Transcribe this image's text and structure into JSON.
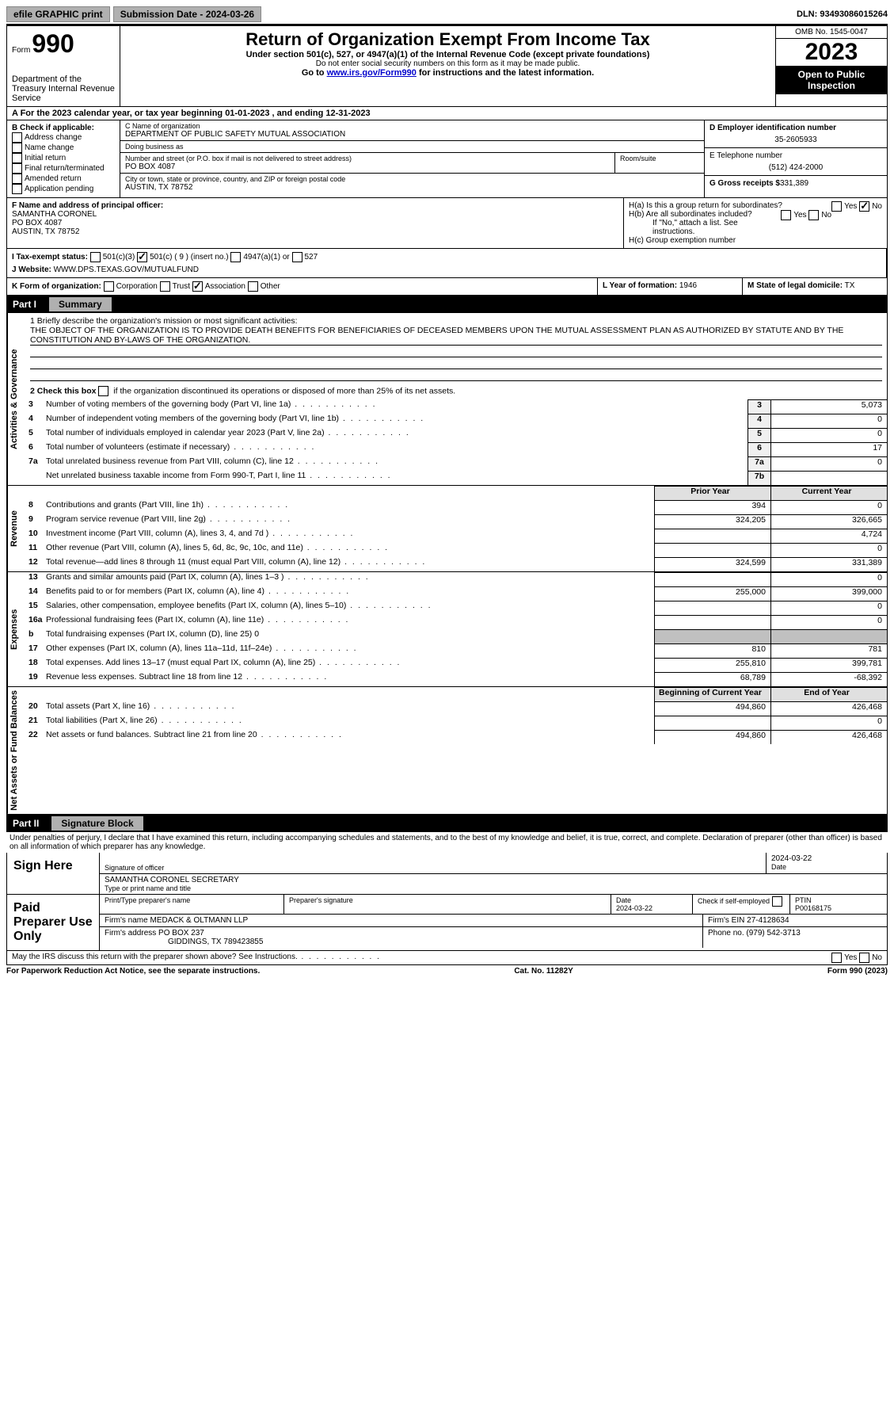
{
  "topbar": {
    "efile": "efile GRAPHIC print",
    "submission_label": "Submission Date - 2024-03-26",
    "dln_label": "DLN: 93493086015264"
  },
  "header": {
    "form_label": "Form",
    "form_num": "990",
    "dept": "Department of the Treasury Internal Revenue Service",
    "title": "Return of Organization Exempt From Income Tax",
    "sub": "Under section 501(c), 527, or 4947(a)(1) of the Internal Revenue Code (except private foundations)",
    "ssn_note": "Do not enter social security numbers on this form as it may be made public.",
    "goto_pre": "Go to ",
    "goto_link": "www.irs.gov/Form990",
    "goto_post": " for instructions and the latest information.",
    "omb": "OMB No. 1545-0047",
    "year": "2023",
    "open_public": "Open to Public Inspection"
  },
  "section_a": "A  For the 2023 calendar year, or tax year beginning 01-01-2023   , and ending 12-31-2023",
  "section_b": {
    "label": "B Check if applicable:",
    "items": [
      "Address change",
      "Name change",
      "Initial return",
      "Final return/terminated",
      "Amended return",
      "Application pending"
    ]
  },
  "section_c": {
    "name_label": "C Name of organization",
    "name": "DEPARTMENT OF PUBLIC SAFETY MUTUAL ASSOCIATION",
    "dba_label": "Doing business as",
    "dba": "",
    "street_label": "Number and street (or P.O. box if mail is not delivered to street address)",
    "street": "PO BOX 4087",
    "room_label": "Room/suite",
    "room": "",
    "city_label": "City or town, state or province, country, and ZIP or foreign postal code",
    "city": "AUSTIN, TX  78752"
  },
  "section_d": {
    "ein_label": "D Employer identification number",
    "ein": "35-2605933",
    "phone_label": "E Telephone number",
    "phone": "(512) 424-2000",
    "gross_label": "G Gross receipts $",
    "gross": "331,389"
  },
  "section_f": {
    "label": "F  Name and address of principal officer:",
    "name": "SAMANTHA CORONEL",
    "addr1": "PO BOX 4087",
    "addr2": "AUSTIN, TX  78752"
  },
  "section_h": {
    "a": "H(a)  Is this a group return for subordinates?",
    "a_no": "No",
    "b": "H(b)  Are all subordinates included?",
    "b_note": "If \"No,\" attach a list. See instructions.",
    "c": "H(c)  Group exemption number "
  },
  "section_i": {
    "label": "I   Tax-exempt status:",
    "opt1": "501(c)(3)",
    "opt2": "501(c) ( 9 ) (insert no.)",
    "opt3": "4947(a)(1) or",
    "opt4": "527"
  },
  "section_j": {
    "label": "J   Website: ",
    "val": "WWW.DPS.TEXAS.GOV/MUTUALFUND"
  },
  "section_k": {
    "label": "K Form of organization:",
    "opts": [
      "Corporation",
      "Trust",
      "Association",
      "Other"
    ]
  },
  "section_l": {
    "label": "L Year of formation:",
    "val": "1946"
  },
  "section_m": {
    "label": "M State of legal domicile:",
    "val": "TX"
  },
  "parts": {
    "p1_label": "Part I",
    "p1_title": "Summary",
    "p2_label": "Part II",
    "p2_title": "Signature Block"
  },
  "mission": {
    "line1_label": "1  Briefly describe the organization's mission or most significant activities:",
    "text": "THE OBJECT OF THE ORGANIZATION IS TO PROVIDE DEATH BENEFITS FOR BENEFICIARIES OF DECEASED MEMBERS UPON THE MUTUAL ASSESSMENT PLAN AS AUTHORIZED BY STATUTE AND BY THE CONSTITUTION AND BY-LAWS OF THE ORGANIZATION.",
    "line2_label": "2   Check this box ",
    "line2_post": " if the organization discontinued its operations or disposed of more than 25% of its net assets."
  },
  "vert_labels": {
    "gov": "Activities & Governance",
    "rev": "Revenue",
    "exp": "Expenses",
    "net": "Net Assets or Fund Balances"
  },
  "gov_lines": [
    {
      "n": "3",
      "d": "Number of voting members of the governing body (Part VI, line 1a)",
      "box": "3",
      "v": "5,073"
    },
    {
      "n": "4",
      "d": "Number of independent voting members of the governing body (Part VI, line 1b)",
      "box": "4",
      "v": "0"
    },
    {
      "n": "5",
      "d": "Total number of individuals employed in calendar year 2023 (Part V, line 2a)",
      "box": "5",
      "v": "0"
    },
    {
      "n": "6",
      "d": "Total number of volunteers (estimate if necessary)",
      "box": "6",
      "v": "17"
    },
    {
      "n": "7a",
      "d": "Total unrelated business revenue from Part VIII, column (C), line 12",
      "box": "7a",
      "v": "0"
    },
    {
      "n": "",
      "d": "Net unrelated business taxable income from Form 990-T, Part I, line 11",
      "box": "7b",
      "v": ""
    }
  ],
  "col_headers": {
    "prior": "Prior Year",
    "current": "Current Year"
  },
  "rev_lines": [
    {
      "n": "8",
      "d": "Contributions and grants (Part VIII, line 1h)",
      "p": "394",
      "c": "0"
    },
    {
      "n": "9",
      "d": "Program service revenue (Part VIII, line 2g)",
      "p": "324,205",
      "c": "326,665"
    },
    {
      "n": "10",
      "d": "Investment income (Part VIII, column (A), lines 3, 4, and 7d )",
      "p": "",
      "c": "4,724"
    },
    {
      "n": "11",
      "d": "Other revenue (Part VIII, column (A), lines 5, 6d, 8c, 9c, 10c, and 11e)",
      "p": "",
      "c": "0"
    },
    {
      "n": "12",
      "d": "Total revenue—add lines 8 through 11 (must equal Part VIII, column (A), line 12)",
      "p": "324,599",
      "c": "331,389"
    }
  ],
  "exp_lines": [
    {
      "n": "13",
      "d": "Grants and similar amounts paid (Part IX, column (A), lines 1–3 )",
      "p": "",
      "c": "0"
    },
    {
      "n": "14",
      "d": "Benefits paid to or for members (Part IX, column (A), line 4)",
      "p": "255,000",
      "c": "399,000"
    },
    {
      "n": "15",
      "d": "Salaries, other compensation, employee benefits (Part IX, column (A), lines 5–10)",
      "p": "",
      "c": "0"
    },
    {
      "n": "16a",
      "d": "Professional fundraising fees (Part IX, column (A), line 11e)",
      "p": "",
      "c": "0"
    },
    {
      "n": "b",
      "d": "Total fundraising expenses (Part IX, column (D), line 25) 0",
      "gray": true
    },
    {
      "n": "17",
      "d": "Other expenses (Part IX, column (A), lines 11a–11d, 11f–24e)",
      "p": "810",
      "c": "781"
    },
    {
      "n": "18",
      "d": "Total expenses. Add lines 13–17 (must equal Part IX, column (A), line 25)",
      "p": "255,810",
      "c": "399,781"
    },
    {
      "n": "19",
      "d": "Revenue less expenses. Subtract line 18 from line 12",
      "p": "68,789",
      "c": "-68,392"
    }
  ],
  "net_headers": {
    "begin": "Beginning of Current Year",
    "end": "End of Year"
  },
  "net_lines": [
    {
      "n": "20",
      "d": "Total assets (Part X, line 16)",
      "p": "494,860",
      "c": "426,468"
    },
    {
      "n": "21",
      "d": "Total liabilities (Part X, line 26)",
      "p": "",
      "c": "0"
    },
    {
      "n": "22",
      "d": "Net assets or fund balances. Subtract line 21 from line 20",
      "p": "494,860",
      "c": "426,468"
    }
  ],
  "perjury": "Under penalties of perjury, I declare that I have examined this return, including accompanying schedules and statements, and to the best of my knowledge and belief, it is true, correct, and complete. Declaration of preparer (other than officer) is based on all information of which preparer has any knowledge.",
  "sign": {
    "label": "Sign Here",
    "sig_label": "Signature of officer",
    "name": "SAMANTHA CORONEL  SECRETARY",
    "type_label": "Type or print name and title",
    "date": "2024-03-22",
    "date_label": "Date"
  },
  "preparer": {
    "label": "Paid Preparer Use Only",
    "print_label": "Print/Type preparer's name",
    "sig_label": "Preparer's signature",
    "date_label": "Date",
    "date": "2024-03-22",
    "check_label": "Check         if self-employed",
    "ptin_label": "PTIN",
    "ptin": "P00168175",
    "firm_name_label": "Firm's name   ",
    "firm_name": "MEDACK & OLTMANN LLP",
    "firm_ein_label": "Firm's EIN  ",
    "firm_ein": "27-4128634",
    "firm_addr_label": "Firm's address ",
    "firm_addr1": "PO BOX 237",
    "firm_addr2": "GIDDINGS, TX  789423855",
    "phone_label": "Phone no.",
    "phone": "(979) 542-3713"
  },
  "discuss": "May the IRS discuss this return with the preparer shown above? See Instructions.",
  "footer": {
    "left": "For Paperwork Reduction Act Notice, see the separate instructions.",
    "mid": "Cat. No. 11282Y",
    "right": "Form 990 (2023)"
  }
}
